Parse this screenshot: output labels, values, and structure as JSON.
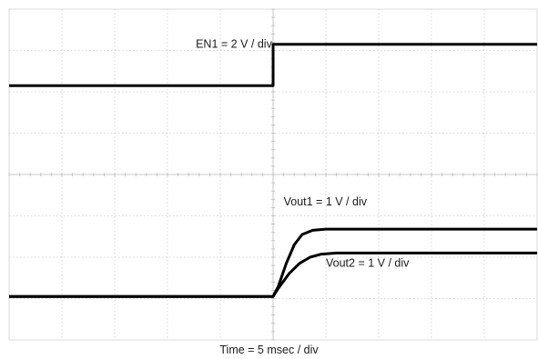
{
  "chart_data": {
    "type": "line",
    "title": "",
    "xlabel": "Time = 5 msec / div",
    "ylabel": "",
    "grid": true,
    "x_divisions": 10,
    "y_divisions": 8,
    "x_unit": "div",
    "xlim": [
      0,
      10
    ],
    "ylim": [
      0,
      8
    ],
    "series": [
      {
        "name": "EN1 = 2 V / div",
        "color": "#000000",
        "x": [
          0,
          5.0,
          5.0,
          10
        ],
        "y": [
          6.15,
          6.15,
          7.15,
          7.15
        ]
      },
      {
        "name": "Vout1 = 1 V / div",
        "color": "#000000",
        "x": [
          0,
          5.0,
          5.1,
          5.25,
          5.4,
          5.55,
          5.75,
          6.0,
          10
        ],
        "y": [
          1.05,
          1.05,
          1.3,
          1.85,
          2.3,
          2.55,
          2.65,
          2.68,
          2.68
        ]
      },
      {
        "name": "Vout2 = 1 V / div",
        "color": "#000000",
        "x": [
          0,
          5.0,
          5.1,
          5.3,
          5.5,
          5.7,
          5.9,
          6.2,
          10
        ],
        "y": [
          1.05,
          1.05,
          1.25,
          1.6,
          1.85,
          2.0,
          2.07,
          2.1,
          2.1
        ]
      }
    ]
  }
}
